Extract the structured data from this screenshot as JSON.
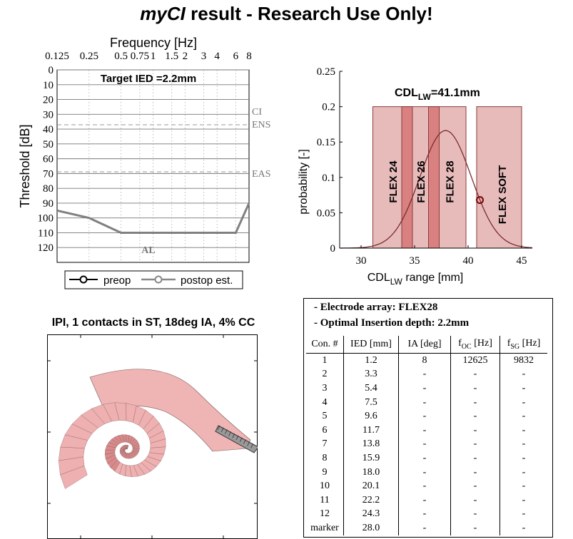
{
  "page": {
    "title_prefix": "myCI",
    "title_rest": " result - Research Use Only!"
  },
  "audiogram": {
    "top_label": "Frequency [Hz]",
    "ylabel": "Threshold [dB]",
    "target_label": "Target IED =2.2mm",
    "freq_labels": [
      "0.125",
      "0.25",
      "0.5",
      "0.75",
      "1",
      "1.5",
      "2",
      "3",
      "4",
      "6",
      "8"
    ],
    "db_ticks": [
      "0",
      "10",
      "20",
      "30",
      "40",
      "50",
      "60",
      "70",
      "80",
      "90",
      "100",
      "110",
      "120"
    ],
    "ref_labels": [
      "CI",
      "ENS",
      "EAS"
    ],
    "al_label": "AL",
    "legend": {
      "preop": "preop",
      "postop": "postop est."
    },
    "colors": {
      "postop": "#808080",
      "preop": "#000000"
    }
  },
  "chart_data": [
    {
      "type": "line",
      "title": "",
      "xlabel": "Frequency [Hz]",
      "ylabel": "Threshold [dB]",
      "x_scale": "log",
      "xlim": [
        0.125,
        8
      ],
      "ylim": [
        0,
        130
      ],
      "y_inverted": true,
      "reference_lines": [
        {
          "label": "ENS",
          "y": 30,
          "style": "dashed"
        },
        {
          "label": "EAS",
          "y": 64,
          "style": "dashed"
        }
      ],
      "series": [
        {
          "name": "postop est.",
          "x": [
            0.125,
            0.25,
            0.5,
            6,
            8
          ],
          "y": [
            95,
            100,
            110,
            110,
            90
          ]
        },
        {
          "name": "preop",
          "x": [],
          "y": []
        }
      ]
    },
    {
      "type": "bar",
      "title": "CDL_LW=41.1mm",
      "xlabel": "CDL_LW range [mm]",
      "ylabel": "probability [-]",
      "xlim": [
        28,
        46
      ],
      "ylim": [
        0,
        0.25
      ],
      "x_ticks": [
        30,
        35,
        40,
        45
      ],
      "y_ticks": [
        0,
        0.05,
        0.1,
        0.15,
        0.2,
        0.25
      ],
      "bands": [
        {
          "label": "FLEX 24",
          "x": [
            31.1,
            34.8
          ],
          "height": 0.2
        },
        {
          "label": "FLEX 26",
          "x": [
            33.8,
            37.3
          ],
          "height": 0.2
        },
        {
          "label": "FLEX 28",
          "x": [
            36.3,
            39.8
          ],
          "height": 0.2
        },
        {
          "label": "FLEX SOFT",
          "x": [
            40.8,
            45.0
          ],
          "height": 0.2
        }
      ],
      "distribution": {
        "mean": 37.9,
        "sd": 2.4
      },
      "marker": {
        "x": 41.1,
        "y": 0.068
      }
    }
  ],
  "histogram": {
    "ylabel": "probability [-]",
    "xlabel_main": "CDL",
    "xlabel_sub": "LW",
    "xlabel_rest": " range [mm]",
    "annotation_main": "CDL",
    "annotation_sub": "LW",
    "annotation_rest": "=41.1mm",
    "y_tick_labels": [
      "0",
      "0.05",
      "0.1",
      "0.15",
      "0.2",
      "0.25"
    ],
    "x_tick_labels": [
      "30",
      "35",
      "40",
      "45"
    ],
    "colors": {
      "band_fill": "#e5b4b4",
      "band_overlap": "#d98080",
      "band_edge": "#8b3a3a",
      "curve": "#7a2b2b"
    }
  },
  "cochlea": {
    "title": "IPI, 1 contacts in ST, 18deg IA, 4% CC",
    "colors": {
      "outer": "#eeb0b0",
      "inner": "#d98a8a",
      "mesh": "#7a5a5a",
      "electrode": "#333333"
    }
  },
  "info": {
    "array_line": "- Electrode array: FLEX28",
    "depth_line": "- Optimal Insertion depth: 2.2mm",
    "columns": [
      "Con. #",
      "IED [mm]",
      "IA [deg]",
      "f",
      "OC",
      " [Hz]",
      "f",
      "SG",
      " [Hz]"
    ],
    "rows": [
      [
        "1",
        "1.2",
        "8",
        "12625",
        "9832"
      ],
      [
        "2",
        "3.3",
        "-",
        "-",
        "-"
      ],
      [
        "3",
        "5.4",
        "-",
        "-",
        "-"
      ],
      [
        "4",
        "7.5",
        "-",
        "-",
        "-"
      ],
      [
        "5",
        "9.6",
        "-",
        "-",
        "-"
      ],
      [
        "6",
        "11.7",
        "-",
        "-",
        "-"
      ],
      [
        "7",
        "13.8",
        "-",
        "-",
        "-"
      ],
      [
        "8",
        "15.9",
        "-",
        "-",
        "-"
      ],
      [
        "9",
        "18.0",
        "-",
        "-",
        "-"
      ],
      [
        "10",
        "20.1",
        "-",
        "-",
        "-"
      ],
      [
        "11",
        "22.2",
        "-",
        "-",
        "-"
      ],
      [
        "12",
        "24.3",
        "-",
        "-",
        "-"
      ],
      [
        "marker",
        "28.0",
        "-",
        "-",
        "-"
      ]
    ]
  }
}
